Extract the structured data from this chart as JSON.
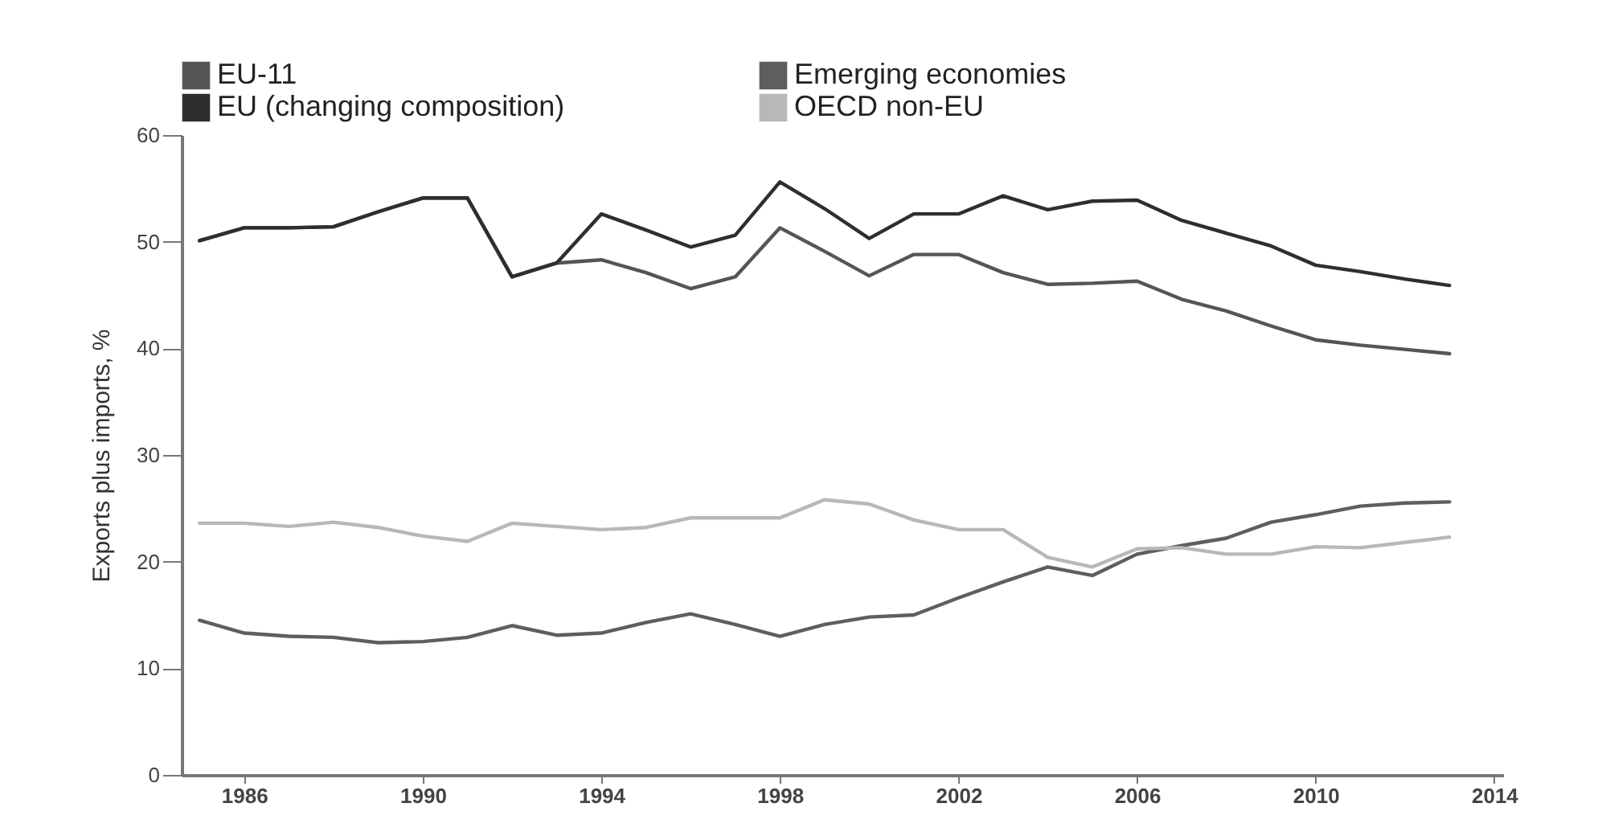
{
  "chart_data": {
    "type": "line",
    "ylabel": "Exports plus imports, %",
    "x": [
      1985,
      1986,
      1987,
      1988,
      1989,
      1990,
      1991,
      1992,
      1993,
      1994,
      1995,
      1996,
      1997,
      1998,
      1999,
      2000,
      2001,
      2002,
      2003,
      2004,
      2005,
      2006,
      2007,
      2008,
      2009,
      2010,
      2011,
      2012,
      2013
    ],
    "series": [
      {
        "name": "EU-11",
        "color": "#555555",
        "values": [
          50.1,
          51.3,
          51.3,
          51.4,
          52.8,
          54.1,
          54.1,
          46.7,
          48.0,
          48.3,
          47.1,
          45.6,
          46.7,
          51.3,
          49.1,
          46.8,
          48.8,
          48.8,
          47.1,
          46.0,
          46.1,
          46.3,
          44.6,
          43.5,
          42.1,
          40.8,
          40.3,
          39.9,
          39.5
        ]
      },
      {
        "name": "Emerging economies",
        "color": "#5e5e5e",
        "values": [
          14.5,
          13.3,
          13.0,
          12.9,
          12.4,
          12.5,
          12.9,
          14.0,
          13.1,
          13.3,
          14.3,
          15.1,
          14.1,
          13.0,
          14.1,
          14.8,
          15.0,
          16.6,
          18.1,
          19.5,
          18.7,
          20.7,
          21.5,
          22.2,
          23.7,
          24.4,
          25.2,
          25.5,
          25.6
        ]
      },
      {
        "name": "EU (changing composition)",
        "color": "#2e2e2e",
        "values": [
          50.1,
          51.3,
          51.3,
          51.4,
          52.8,
          54.1,
          54.1,
          46.7,
          48.0,
          52.6,
          51.1,
          49.5,
          50.6,
          55.6,
          53.1,
          50.3,
          52.6,
          52.6,
          54.3,
          53.0,
          53.8,
          53.9,
          52.0,
          50.8,
          49.6,
          47.8,
          47.2,
          46.5,
          45.9
        ]
      },
      {
        "name": "OECD non-EU",
        "color": "#b8b8b8",
        "values": [
          23.6,
          23.6,
          23.3,
          23.7,
          23.2,
          22.4,
          21.9,
          23.6,
          23.3,
          23.0,
          23.2,
          24.1,
          24.1,
          24.1,
          25.8,
          25.4,
          23.9,
          23.0,
          23.0,
          20.4,
          19.5,
          21.2,
          21.3,
          20.7,
          20.7,
          21.4,
          21.3,
          21.8,
          22.3
        ]
      }
    ],
    "xlim": [
      1984.6,
      2014.2
    ],
    "xticks": [
      1986,
      1990,
      1994,
      1998,
      2002,
      2006,
      2010,
      2014
    ],
    "ylim": [
      0,
      60
    ],
    "yticks": [
      0,
      10,
      20,
      30,
      40,
      50,
      60
    ],
    "grid": false,
    "legend": "top"
  }
}
